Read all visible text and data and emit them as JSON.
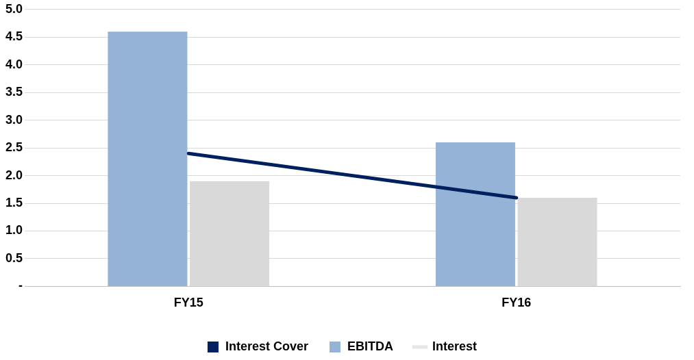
{
  "chart_data": {
    "type": "bar",
    "categories": [
      "FY15",
      "FY16"
    ],
    "series": [
      {
        "name": "EBITDA",
        "color": "#95b3d7",
        "values": [
          4.6,
          2.6
        ]
      },
      {
        "name": "Interest",
        "color": "#d9d9d9",
        "values": [
          1.9,
          1.6
        ]
      },
      {
        "name": "Interest Cover",
        "type": "line",
        "color": "#002060",
        "values": [
          2.4,
          1.6
        ]
      }
    ],
    "ylim": [
      0,
      5
    ],
    "yticks": [
      {
        "value": 0,
        "label": "-"
      },
      {
        "value": 0.5,
        "label": "0.5"
      },
      {
        "value": 1,
        "label": "1.0"
      },
      {
        "value": 1.5,
        "label": "1.5"
      },
      {
        "value": 2,
        "label": "2.0"
      },
      {
        "value": 2.5,
        "label": "2.5"
      },
      {
        "value": 3,
        "label": "3.0"
      },
      {
        "value": 3.5,
        "label": "3.5"
      },
      {
        "value": 4,
        "label": "4.0"
      },
      {
        "value": 4.5,
        "label": "4.5"
      },
      {
        "value": 5,
        "label": "5.0"
      }
    ],
    "grid": "y",
    "legend": "bottom",
    "marker": "none"
  }
}
